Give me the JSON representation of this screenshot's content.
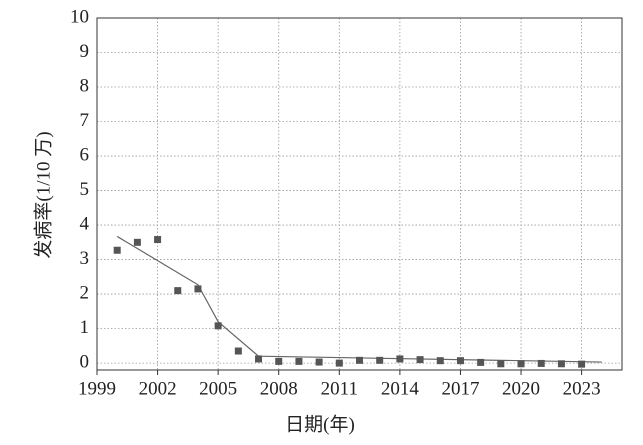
{
  "chart_data": {
    "type": "scatter",
    "x_label": "日期(年)",
    "y_label": "发病率(1/10 万)",
    "x": [
      2000,
      2001,
      2002,
      2003,
      2004,
      2005,
      2006,
      2007,
      2008,
      2009,
      2010,
      2011,
      2012,
      2013,
      2014,
      2015,
      2016,
      2017,
      2018,
      2019,
      2020,
      2021,
      2022,
      2023
    ],
    "values": [
      3.27,
      3.5,
      3.58,
      2.1,
      2.15,
      1.08,
      0.35,
      0.12,
      0.05,
      0.05,
      0.03,
      0.0,
      0.08,
      0.08,
      0.12,
      0.1,
      0.07,
      0.07,
      0.02,
      -0.02,
      -0.02,
      -0.01,
      -0.02,
      -0.03
    ],
    "color": "#555555",
    "fit": {
      "x": [
        2000,
        2004,
        2005,
        2007,
        2024
      ],
      "values": [
        3.67,
        2.27,
        1.2,
        0.2,
        0.03
      ],
      "color": "#666666"
    },
    "xlim": [
      1999,
      2025
    ],
    "ylim": [
      -0.2,
      10
    ],
    "xticks": [
      1999,
      2002,
      2005,
      2008,
      2011,
      2014,
      2017,
      2020,
      2023
    ],
    "yticks": [
      0,
      1,
      2,
      3,
      4,
      5,
      6,
      7,
      8,
      9,
      10
    ],
    "grid": true
  }
}
